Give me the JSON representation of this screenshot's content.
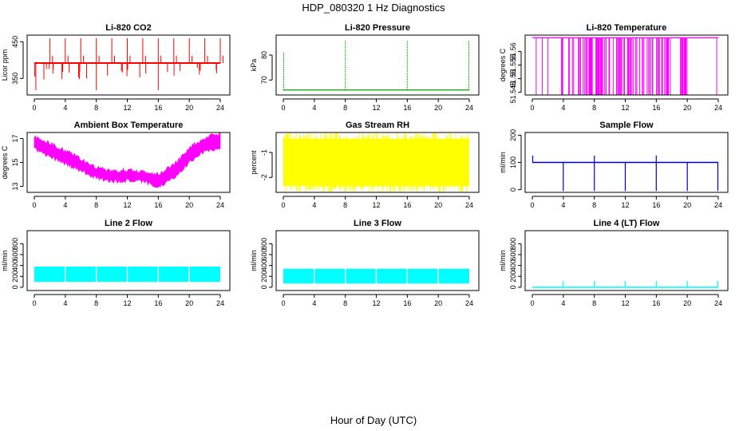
{
  "figure": {
    "title": "HDP_080320  1 Hz Diagnostics",
    "xlabel": "Hour of Day (UTC)"
  },
  "chart_data": [
    {
      "type": "line",
      "title": "Li-820 CO2",
      "xlabel": "",
      "ylabel": "Licor ppm",
      "color": "#ff0000",
      "xlim": [
        0,
        24
      ],
      "ylim": [
        305,
        468
      ],
      "xticks": [
        0,
        4,
        8,
        12,
        16,
        20,
        24
      ],
      "yticks": [
        350,
        450
      ],
      "series": [
        {
          "kind": "co2",
          "baseline": 392,
          "spikes_up": [
            2.0,
            4.0,
            6.0,
            8.0,
            10.0,
            12.0,
            14.0,
            16.0,
            18.0,
            20.0,
            22.0,
            24.0
          ],
          "peak": 460,
          "dip_min": 318
        }
      ]
    },
    {
      "type": "line",
      "title": "Li-820 Pressure",
      "xlabel": "",
      "ylabel": "kPa",
      "color": "#00a000",
      "xlim": [
        0,
        24
      ],
      "ylim": [
        64,
        88
      ],
      "xticks": [
        0,
        4,
        8,
        12,
        16,
        20,
        24
      ],
      "yticks": [
        70,
        80
      ],
      "series": [
        {
          "kind": "pressure",
          "baseline": 66,
          "spikes": [
            0,
            8,
            16,
            24
          ],
          "peak": 86
        }
      ]
    },
    {
      "type": "line",
      "title": "Li-820 Temperature",
      "xlabel": "",
      "ylabel": "degrees C",
      "color": "#ff00ff",
      "xlim": [
        0,
        24
      ],
      "ylim": [
        51.544,
        51.566
      ],
      "xticks": [
        0,
        4,
        8,
        12,
        16,
        20,
        24
      ],
      "yticks": [
        51.545,
        51.55,
        51.555,
        51.56
      ],
      "series": [
        {
          "kind": "binary",
          "high": 51.565,
          "low": 51.544
        }
      ]
    },
    {
      "type": "area",
      "title": "Ambient Box Temperature",
      "xlabel": "",
      "ylabel": "degrees C",
      "color": "#ff00ff",
      "xlim": [
        0,
        24
      ],
      "ylim": [
        12.5,
        17.5
      ],
      "xticks": [
        0,
        4,
        8,
        12,
        16,
        20,
        24
      ],
      "yticks": [
        13,
        15,
        17
      ],
      "series": [
        {
          "kind": "band",
          "x": [
            0,
            2,
            4,
            6,
            8,
            10,
            12,
            14,
            16,
            18,
            20,
            22,
            24
          ],
          "lower": [
            16.1,
            15.5,
            14.9,
            14.3,
            13.7,
            13.4,
            13.5,
            13.4,
            13.0,
            13.7,
            15.0,
            15.9,
            16.2
          ],
          "upper": [
            17.2,
            16.6,
            16.0,
            15.3,
            14.6,
            14.2,
            14.4,
            14.2,
            14.0,
            14.8,
            16.2,
            17.1,
            17.4
          ]
        }
      ]
    },
    {
      "type": "area",
      "title": "Gas Stream RH",
      "xlabel": "",
      "ylabel": "percent",
      "color": "#ffff00",
      "xlim": [
        0,
        24
      ],
      "ylim": [
        -2.6,
        -0.2
      ],
      "xticks": [
        0,
        4,
        8,
        12,
        16,
        20,
        24
      ],
      "yticks": [
        -2.0,
        -1.0
      ],
      "series": [
        {
          "kind": "noise",
          "x": [
            0,
            24
          ],
          "lower": -2.35,
          "upper": -0.45
        }
      ]
    },
    {
      "type": "line",
      "title": "Sample Flow",
      "xlabel": "",
      "ylabel": "ml/min",
      "color": "#0000cc",
      "xlim": [
        0,
        24
      ],
      "ylim": [
        -10,
        210
      ],
      "xticks": [
        0,
        4,
        8,
        12,
        16,
        20,
        24
      ],
      "yticks": [
        0,
        100,
        200
      ],
      "series": [
        {
          "kind": "flow",
          "baseline": 100,
          "dips": [
            4,
            8,
            12,
            16,
            20,
            24
          ],
          "dip_min": -5,
          "peaks": [
            0,
            8,
            16
          ],
          "peak": 125
        }
      ]
    },
    {
      "type": "area",
      "title": "Line 2 Flow",
      "xlabel": "",
      "ylabel": "ml/min",
      "color": "#00ffff",
      "xlim": [
        0,
        24
      ],
      "ylim": [
        -60,
        1040
      ],
      "xticks": [
        0,
        4,
        8,
        12,
        16,
        20,
        24
      ],
      "yticks": [
        0,
        200,
        400,
        600,
        800
      ],
      "series": [
        {
          "kind": "blocks",
          "lower": 100,
          "upper": 380,
          "gaps": [
            4,
            8,
            12,
            16,
            20
          ]
        }
      ]
    },
    {
      "type": "area",
      "title": "Line 3 Flow",
      "xlabel": "",
      "ylabel": "ml/min",
      "color": "#00ffff",
      "xlim": [
        0,
        24
      ],
      "ylim": [
        -60,
        1040
      ],
      "xticks": [
        0,
        4,
        8,
        12,
        16,
        20,
        24
      ],
      "yticks": [
        0,
        200,
        400,
        600,
        800
      ],
      "series": [
        {
          "kind": "blocks",
          "lower": 70,
          "upper": 340,
          "gaps": [
            4,
            8,
            12,
            16,
            20
          ]
        }
      ]
    },
    {
      "type": "line",
      "title": "Line 4 (LT) Flow",
      "xlabel": "",
      "ylabel": "ml/min",
      "color": "#00ffff",
      "xlim": [
        0,
        24
      ],
      "ylim": [
        -60,
        1040
      ],
      "xticks": [
        0,
        4,
        8,
        12,
        16,
        20,
        24
      ],
      "yticks": [
        0,
        200,
        400,
        600,
        800
      ],
      "series": [
        {
          "kind": "flow",
          "baseline": 0,
          "dips": [],
          "peaks": [
            4,
            8,
            12,
            16,
            20,
            24
          ],
          "peak": 120
        }
      ]
    }
  ]
}
